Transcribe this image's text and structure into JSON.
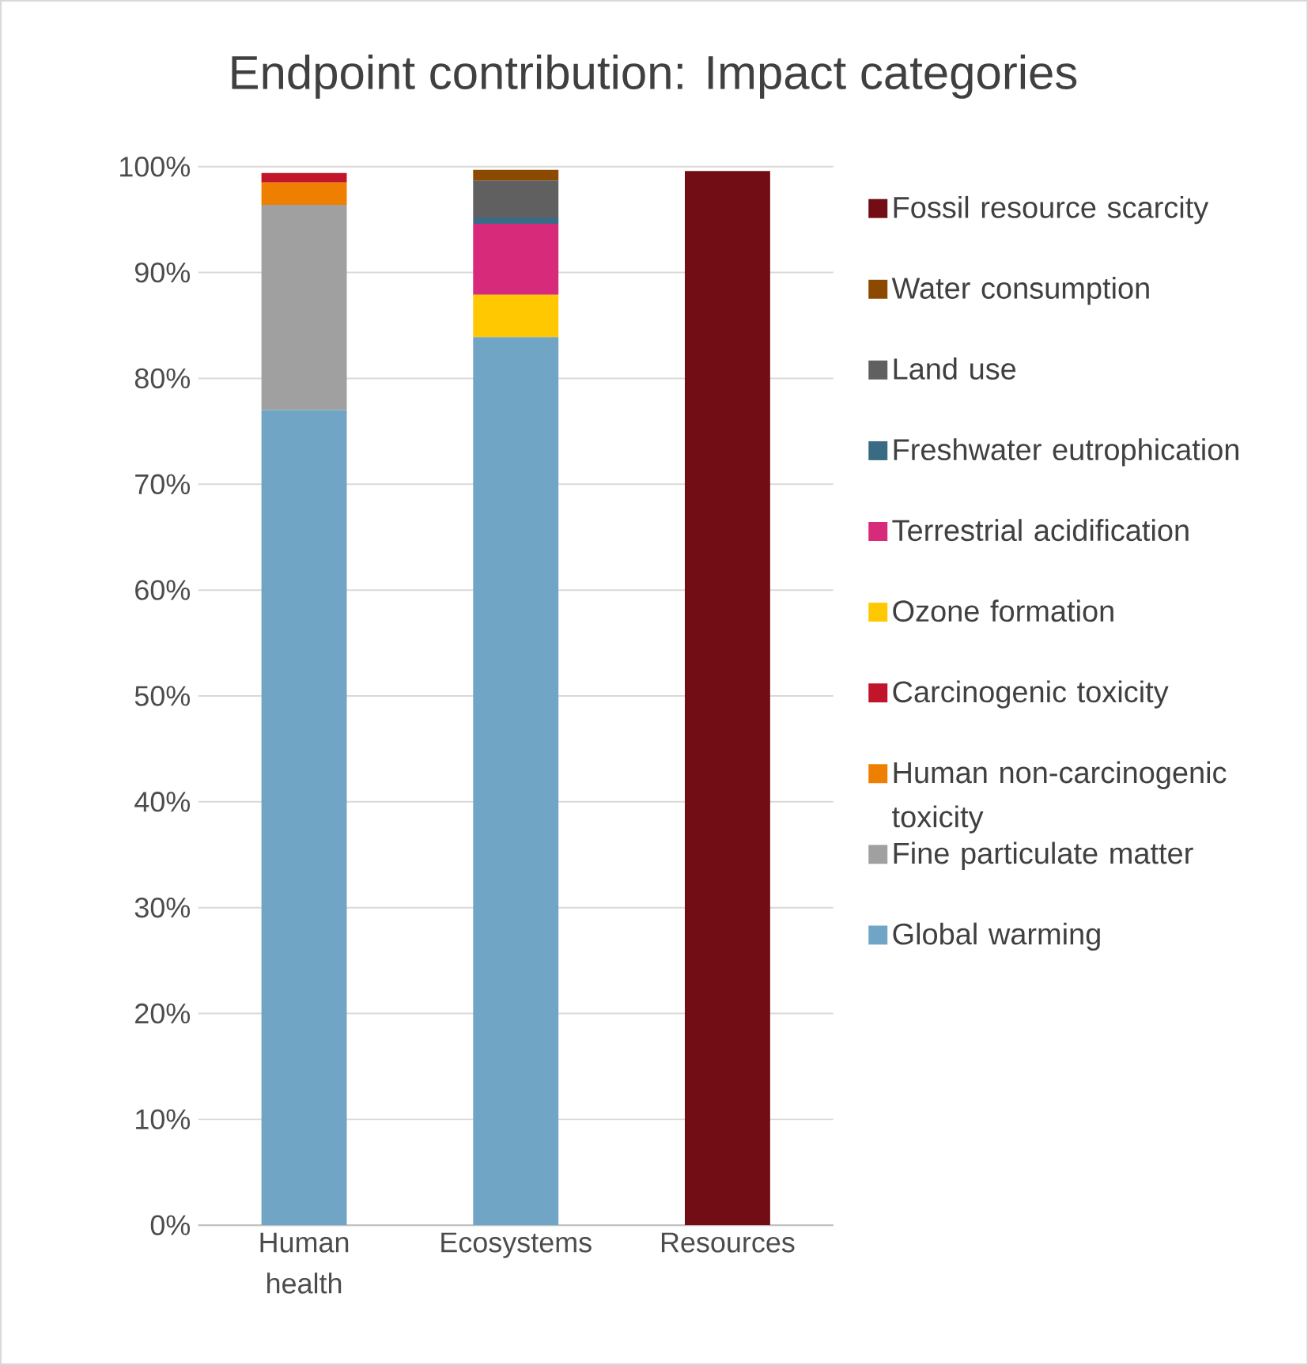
{
  "chart_data": {
    "type": "bar",
    "stacked": true,
    "title": "Endpoint contribution: Impact categories",
    "categories": [
      "Human health",
      "Ecosystems",
      "Resources"
    ],
    "series": [
      {
        "name": "Global warming",
        "color": "#71a5c5",
        "values": [
          77.0,
          83.9,
          0
        ]
      },
      {
        "name": "Fine particulate matter",
        "color": "#a0a0a0",
        "values": [
          19.4,
          0,
          0
        ]
      },
      {
        "name": "Human non-carcinogenic toxicity",
        "color": "#ef7f00",
        "values": [
          2.1,
          0,
          0
        ]
      },
      {
        "name": "Carcinogenic toxicity",
        "color": "#c0152a",
        "values": [
          0.9,
          0,
          0
        ]
      },
      {
        "name": "Ozone formation",
        "color": "#ffc800",
        "values": [
          0,
          4.0,
          0
        ]
      },
      {
        "name": "Terrestrial acidification",
        "color": "#d82a7a",
        "values": [
          0,
          6.7,
          0
        ]
      },
      {
        "name": "Freshwater eutrophication",
        "color": "#3a6b85",
        "values": [
          0,
          0.6,
          0
        ]
      },
      {
        "name": "Land use",
        "color": "#606060",
        "values": [
          0,
          3.5,
          0
        ]
      },
      {
        "name": "Water consumption",
        "color": "#8b4a00",
        "values": [
          0,
          1.0,
          0
        ]
      },
      {
        "name": "Fossil resource scarcity",
        "color": "#720c15",
        "values": [
          0,
          0,
          99.6
        ]
      }
    ],
    "ylim": [
      0,
      100
    ],
    "yticks": [
      {
        "value": 0,
        "label": "0%"
      },
      {
        "value": 10,
        "label": "10%"
      },
      {
        "value": 20,
        "label": "20%"
      },
      {
        "value": 30,
        "label": "30%"
      },
      {
        "value": 40,
        "label": "40%"
      },
      {
        "value": 50,
        "label": "50%"
      },
      {
        "value": 60,
        "label": "60%"
      },
      {
        "value": 70,
        "label": "70%"
      },
      {
        "value": 80,
        "label": "80%"
      },
      {
        "value": 90,
        "label": "90%"
      },
      {
        "value": 100,
        "label": "100%"
      }
    ],
    "grid": "y",
    "legend": "right"
  }
}
